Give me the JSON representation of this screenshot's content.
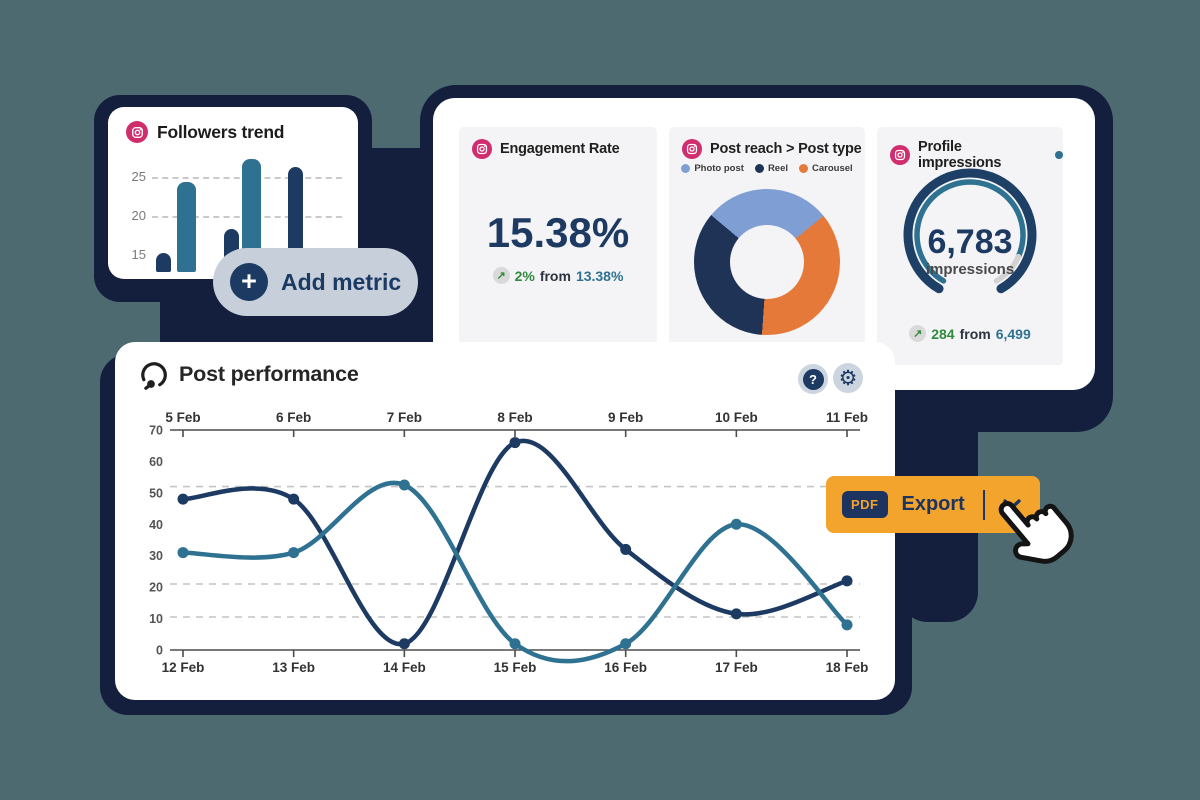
{
  "colors": {
    "page_bg": "#4c6a70",
    "backdrop_navy": "#131f3c",
    "navy_text": "#1d3a63",
    "series_navy": "#1d3a63",
    "series_teal": "#2e7191",
    "donut_blue": "#7f9fd4",
    "donut_navy": "#1e3356",
    "donut_orange": "#e5793a",
    "button_orange": "#f2a42d",
    "pill_gray": "#c6cfda",
    "card_gray": "#f4f4f6",
    "green": "#2f8a3d",
    "instagram_pink": "#d02d6e"
  },
  "icons": {
    "instagram": "instagram-camera",
    "question": "?",
    "gear": "⚙",
    "plus": "+",
    "up_arrow": "↗",
    "chevron_down": "v",
    "gauge_logo": "dial-arc-with-knob",
    "hand_cursor": "pointer-hand"
  },
  "followers": {
    "title": "Followers trend",
    "yticks": [
      "25",
      "20",
      "15"
    ]
  },
  "add_metric": {
    "label": "Add metric",
    "plus": "+"
  },
  "engagement": {
    "title": "Engagement Rate",
    "value": "15.38%",
    "delta": "2%",
    "from_word": "from",
    "previous": "13.38%",
    "arrow": "↗"
  },
  "post_reach": {
    "title": "Post reach > Post type"
  },
  "impressions": {
    "title": "Profile impressions",
    "value": "6,783",
    "unit": "impressions",
    "delta": "284",
    "from_word": "from",
    "previous": "6,499",
    "arrow": "↗"
  },
  "post_performance": {
    "title": "Post performance"
  },
  "export": {
    "badge": "PDF",
    "label": "Export"
  },
  "chart_data": [
    {
      "type": "bar",
      "title": "Followers trend",
      "categories": [
        "",
        "",
        "",
        "",
        ""
      ],
      "values": [
        15,
        24,
        18,
        27,
        26
      ],
      "bar_colors": [
        "#1d3a63",
        "#2e7191",
        "#1d3a63",
        "#2e7191",
        "#1d3a63"
      ],
      "yticks": [
        25,
        20,
        15
      ],
      "gridlines": [
        25,
        20
      ],
      "grid": "dashed-horizontal",
      "ylim": [
        12.5,
        27.5
      ]
    },
    {
      "type": "pie",
      "title": "Post reach > Post type",
      "subtype": "donut",
      "legend": [
        {
          "label": "Photo post",
          "color": "#7f9fd4"
        },
        {
          "label": "Reel",
          "color": "#1e3356"
        },
        {
          "label": "Carousel",
          "color": "#e5793a"
        }
      ],
      "segments": [
        {
          "label": "Photo post",
          "pct": 28,
          "color": "#7f9fd4"
        },
        {
          "label": "Carousel",
          "pct": 37,
          "color": "#e5793a"
        },
        {
          "label": "Reel",
          "pct": 35,
          "color": "#1e3356"
        }
      ],
      "start_angle_deg_from_top": 310,
      "legend_position": "top"
    },
    {
      "type": "gauge",
      "title": "Profile impressions",
      "value": 6783,
      "value_label": "6,783",
      "unit": "impressions",
      "delta": 284,
      "previous": 6499,
      "previous_label": "6,499"
    },
    {
      "type": "line",
      "title": "Post performance",
      "top_dates": [
        "5 Feb",
        "6 Feb",
        "7 Feb",
        "8 Feb",
        "9 Feb",
        "10 Feb",
        "11 Feb"
      ],
      "bottom_dates": [
        "12 Feb",
        "13 Feb",
        "14 Feb",
        "15 Feb",
        "16 Feb",
        "17 Feb",
        "18 Feb"
      ],
      "yticks": [
        0,
        10,
        20,
        30,
        40,
        50,
        60,
        70
      ],
      "ylim": [
        0,
        70
      ],
      "dashed_gridlines_at": [
        52,
        21,
        10.5
      ],
      "series": [
        {
          "name": "series-navy",
          "color": "#1d3a63",
          "values": [
            48,
            48,
            2,
            66,
            32,
            11.5,
            22
          ]
        },
        {
          "name": "series-teal",
          "color": "#2e7191",
          "values": [
            31,
            31,
            52.5,
            2,
            2,
            40,
            8
          ]
        }
      ],
      "legend_position": "none",
      "grid": "partial-dashed"
    }
  ]
}
